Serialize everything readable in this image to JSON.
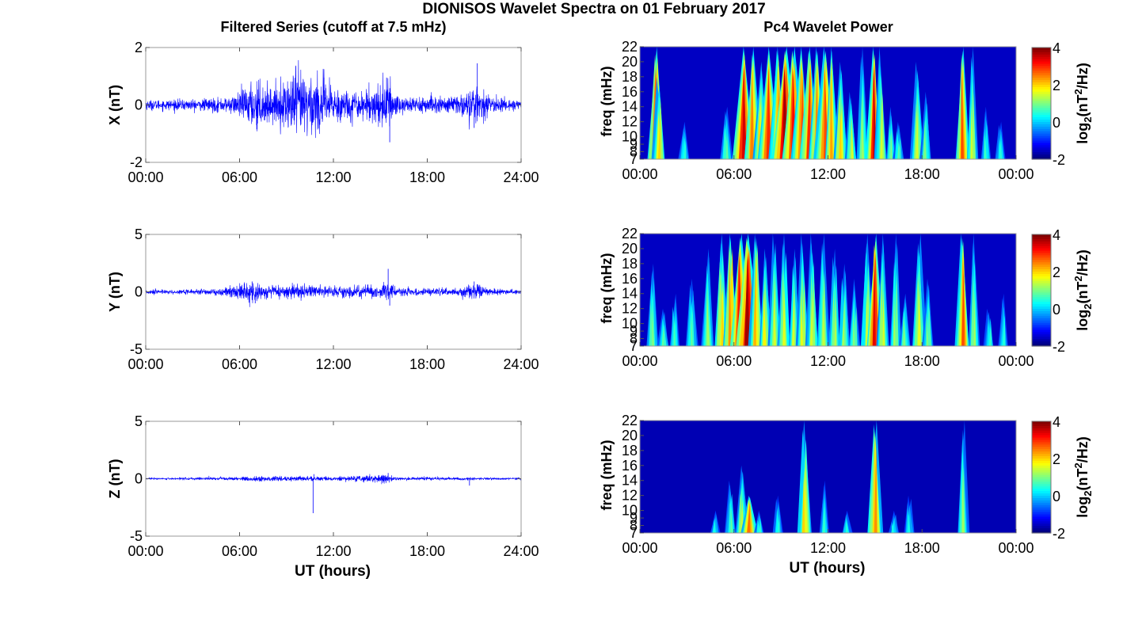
{
  "figure": {
    "title": "DIONISOS Wavelet Spectra on 01 February 2017",
    "left_title": "Filtered Series (cutoff at 7.5 mHz)",
    "right_title": "Pc4 Wavelet Power",
    "colorbar_label_base": "log",
    "colorbar_label_sub": "2",
    "colorbar_label_mid": "(nT",
    "colorbar_label_sup": "2",
    "colorbar_label_end": "/Hz)"
  },
  "chart_data": [
    {
      "type": "line",
      "panel": "X",
      "ylabel": "X (nT)",
      "xlabel": "",
      "ylim": [
        -2,
        2
      ],
      "yticks": [
        "2",
        "0",
        "-2"
      ],
      "xticks": [
        "00:00",
        "06:00",
        "12:00",
        "18:00",
        "24:00"
      ],
      "xlim_hours": [
        0,
        24
      ],
      "series_color": "#0000ff",
      "noise_baseline": 0.08,
      "activity_envelope": [
        [
          0,
          0.09
        ],
        [
          3,
          0.1
        ],
        [
          5.5,
          0.15
        ],
        [
          6.5,
          0.35
        ],
        [
          7,
          0.5
        ],
        [
          8,
          0.3
        ],
        [
          9,
          0.45
        ],
        [
          9.5,
          0.7
        ],
        [
          10.5,
          0.6
        ],
        [
          11.5,
          0.5
        ],
        [
          12,
          0.35
        ],
        [
          13,
          0.3
        ],
        [
          14,
          0.25
        ],
        [
          15.5,
          0.5
        ],
        [
          16,
          0.2
        ],
        [
          18,
          0.15
        ],
        [
          20,
          0.18
        ],
        [
          21,
          0.35
        ],
        [
          22,
          0.15
        ],
        [
          24,
          0.1
        ]
      ],
      "spikes": [
        [
          9.6,
          1.05
        ],
        [
          15.6,
          -1.3
        ],
        [
          15.4,
          0.95
        ],
        [
          21.2,
          1.45
        ],
        [
          21.0,
          -0.8
        ],
        [
          7.1,
          -0.85
        ],
        [
          11.4,
          0.95
        ]
      ]
    },
    {
      "type": "line",
      "panel": "Y",
      "ylabel": "Y (nT)",
      "xlabel": "",
      "ylim": [
        -5,
        5
      ],
      "yticks": [
        "5",
        "0",
        "-5"
      ],
      "xticks": [
        "00:00",
        "06:00",
        "12:00",
        "18:00",
        "24:00"
      ],
      "xlim_hours": [
        0,
        24
      ],
      "series_color": "#0000ff",
      "noise_baseline": 0.1,
      "activity_envelope": [
        [
          0,
          0.1
        ],
        [
          4,
          0.12
        ],
        [
          5.5,
          0.25
        ],
        [
          6.5,
          0.5
        ],
        [
          7.2,
          0.4
        ],
        [
          8,
          0.25
        ],
        [
          10,
          0.3
        ],
        [
          12,
          0.25
        ],
        [
          15,
          0.3
        ],
        [
          15.5,
          0.6
        ],
        [
          16,
          0.2
        ],
        [
          20,
          0.15
        ],
        [
          21,
          0.45
        ],
        [
          22,
          0.15
        ],
        [
          24,
          0.1
        ]
      ],
      "spikes": [
        [
          15.5,
          2.0
        ],
        [
          15.6,
          -1.2
        ],
        [
          7.0,
          -1.0
        ],
        [
          21.0,
          0.9
        ],
        [
          6.8,
          0.9
        ]
      ]
    },
    {
      "type": "line",
      "panel": "Z",
      "ylabel": "Z (nT)",
      "xlabel": "UT (hours)",
      "ylim": [
        -5,
        5
      ],
      "yticks": [
        "5",
        "0",
        "-5"
      ],
      "xticks": [
        "00:00",
        "06:00",
        "12:00",
        "18:00",
        "24:00"
      ],
      "xlim_hours": [
        0,
        24
      ],
      "series_color": "#0000ff",
      "noise_baseline": 0.04,
      "activity_envelope": [
        [
          0,
          0.04
        ],
        [
          6,
          0.08
        ],
        [
          7,
          0.12
        ],
        [
          10,
          0.1
        ],
        [
          12,
          0.08
        ],
        [
          15.5,
          0.2
        ],
        [
          16,
          0.08
        ],
        [
          24,
          0.05
        ]
      ],
      "spikes": [
        [
          10.7,
          -3.0
        ],
        [
          10.75,
          0.4
        ],
        [
          15.5,
          0.5
        ],
        [
          20.7,
          -0.6
        ]
      ]
    },
    {
      "type": "heatmap",
      "panel": "X",
      "ylabel": "freq (mHz)",
      "xlabel": "",
      "ylim": [
        7,
        22
      ],
      "yticks": [
        "22",
        "20",
        "18",
        "16",
        "14",
        "12",
        "10",
        "9",
        "8",
        "7"
      ],
      "ytick_values": [
        22,
        20,
        18,
        16,
        14,
        12,
        10,
        9,
        8,
        7
      ],
      "xticks": [
        "00:00",
        "06:00",
        "12:00",
        "18:00",
        "00:00"
      ],
      "xlim_hours": [
        0,
        24
      ],
      "colorbar": {
        "min": -2,
        "max": 4,
        "ticks": [
          "4",
          "2",
          "0",
          "-2"
        ],
        "colormap": "jet"
      },
      "background_log2_power": -1.6,
      "bursts": [
        [
          1.0,
          3.0,
          1.2,
          22
        ],
        [
          1.2,
          2.0,
          0.9,
          18
        ],
        [
          2.8,
          0.5,
          0.8,
          12
        ],
        [
          5.5,
          0.8,
          0.9,
          14
        ],
        [
          6.6,
          3.5,
          1.6,
          22
        ],
        [
          7.2,
          2.5,
          1.3,
          22
        ],
        [
          7.7,
          2.0,
          1.1,
          20
        ],
        [
          8.2,
          3.0,
          1.6,
          22
        ],
        [
          8.8,
          2.5,
          1.2,
          22
        ],
        [
          9.3,
          3.8,
          2.0,
          22
        ],
        [
          9.8,
          3.2,
          1.7,
          22
        ],
        [
          10.3,
          2.8,
          1.4,
          22
        ],
        [
          10.8,
          3.0,
          1.4,
          22
        ],
        [
          11.3,
          2.5,
          1.2,
          22
        ],
        [
          11.8,
          2.8,
          1.6,
          22
        ],
        [
          12.2,
          2.3,
          1.0,
          22
        ],
        [
          12.8,
          2.0,
          1.0,
          20
        ],
        [
          13.5,
          1.5,
          0.8,
          16
        ],
        [
          14.2,
          1.2,
          0.8,
          22
        ],
        [
          14.9,
          3.6,
          1.1,
          22
        ],
        [
          15.4,
          1.5,
          0.9,
          22
        ],
        [
          16.0,
          1.0,
          0.7,
          14
        ],
        [
          16.5,
          0.8,
          0.7,
          12
        ],
        [
          17.7,
          1.5,
          1.0,
          20
        ],
        [
          18.2,
          1.0,
          0.8,
          16
        ],
        [
          20.6,
          2.8,
          1.0,
          22
        ],
        [
          21.2,
          1.5,
          0.8,
          22
        ],
        [
          22.1,
          0.6,
          0.7,
          14
        ],
        [
          23.0,
          0.5,
          0.7,
          12
        ]
      ]
    },
    {
      "type": "heatmap",
      "panel": "Y",
      "ylabel": "freq (mHz)",
      "xlabel": "",
      "ylim": [
        7,
        22
      ],
      "yticks": [
        "22",
        "20",
        "18",
        "16",
        "14",
        "12",
        "10",
        "9",
        "8",
        "7"
      ],
      "ytick_values": [
        22,
        20,
        18,
        16,
        14,
        12,
        10,
        9,
        8,
        7
      ],
      "xticks": [
        "00:00",
        "06:00",
        "12:00",
        "18:00",
        "00:00"
      ],
      "xlim_hours": [
        0,
        24
      ],
      "colorbar": {
        "min": -2,
        "max": 4,
        "ticks": [
          "4",
          "2",
          "0",
          "-2"
        ],
        "colormap": "jet"
      },
      "background_log2_power": -1.6,
      "bursts": [
        [
          0.8,
          1.0,
          0.8,
          18
        ],
        [
          1.5,
          0.8,
          0.8,
          12
        ],
        [
          2.2,
          0.7,
          0.7,
          14
        ],
        [
          3.3,
          0.8,
          0.8,
          16
        ],
        [
          4.3,
          1.2,
          0.9,
          20
        ],
        [
          5.2,
          2.0,
          1.0,
          22
        ],
        [
          5.8,
          2.4,
          1.1,
          22
        ],
        [
          6.4,
          3.2,
          1.6,
          22
        ],
        [
          6.9,
          3.8,
          1.8,
          22
        ],
        [
          7.4,
          2.2,
          1.0,
          22
        ],
        [
          8.0,
          1.8,
          0.9,
          20
        ],
        [
          8.6,
          1.5,
          0.9,
          22
        ],
        [
          9.2,
          1.6,
          0.9,
          22
        ],
        [
          9.8,
          1.5,
          0.8,
          20
        ],
        [
          10.4,
          1.6,
          0.9,
          22
        ],
        [
          11.0,
          1.5,
          0.9,
          22
        ],
        [
          11.7,
          1.4,
          0.9,
          22
        ],
        [
          12.4,
          1.3,
          0.8,
          20
        ],
        [
          13.0,
          1.2,
          0.8,
          18
        ],
        [
          13.7,
          1.0,
          0.8,
          16
        ],
        [
          14.5,
          1.5,
          0.9,
          22
        ],
        [
          15.0,
          3.4,
          1.2,
          22
        ],
        [
          15.5,
          1.5,
          0.9,
          22
        ],
        [
          16.3,
          1.2,
          0.8,
          22
        ],
        [
          16.9,
          1.0,
          0.8,
          14
        ],
        [
          17.8,
          1.6,
          1.0,
          22
        ],
        [
          18.4,
          1.0,
          0.8,
          16
        ],
        [
          20.6,
          2.8,
          1.0,
          22
        ],
        [
          21.3,
          1.2,
          0.8,
          22
        ],
        [
          22.3,
          0.6,
          0.7,
          12
        ],
        [
          23.2,
          0.5,
          0.7,
          14
        ]
      ]
    },
    {
      "type": "heatmap",
      "panel": "Z",
      "ylabel": "freq (mHz)",
      "xlabel": "UT (hours)",
      "ylim": [
        7,
        22
      ],
      "yticks": [
        "22",
        "20",
        "18",
        "16",
        "14",
        "12",
        "10",
        "9",
        "8",
        "7"
      ],
      "ytick_values": [
        22,
        20,
        18,
        16,
        14,
        12,
        10,
        9,
        8,
        7
      ],
      "xticks": [
        "00:00",
        "06:00",
        "12:00",
        "18:00",
        "00:00"
      ],
      "xlim_hours": [
        0,
        24
      ],
      "colorbar": {
        "min": -2,
        "max": 4,
        "ticks": [
          "4",
          "2",
          "0",
          "-2"
        ],
        "colormap": "jet"
      },
      "background_log2_power": -1.7,
      "bursts": [
        [
          4.8,
          0.4,
          0.7,
          10
        ],
        [
          5.8,
          0.8,
          0.8,
          14
        ],
        [
          6.5,
          1.4,
          1.0,
          16
        ],
        [
          7.0,
          2.6,
          1.2,
          12
        ],
        [
          7.6,
          0.6,
          0.7,
          10
        ],
        [
          8.8,
          0.5,
          0.7,
          12
        ],
        [
          10.5,
          2.0,
          1.0,
          22
        ],
        [
          11.8,
          0.6,
          0.7,
          14
        ],
        [
          13.2,
          0.5,
          0.7,
          10
        ],
        [
          15.0,
          2.4,
          1.1,
          22
        ],
        [
          16.2,
          0.4,
          0.7,
          10
        ],
        [
          17.2,
          0.4,
          0.7,
          12
        ],
        [
          20.6,
          1.2,
          0.8,
          22
        ]
      ]
    }
  ]
}
